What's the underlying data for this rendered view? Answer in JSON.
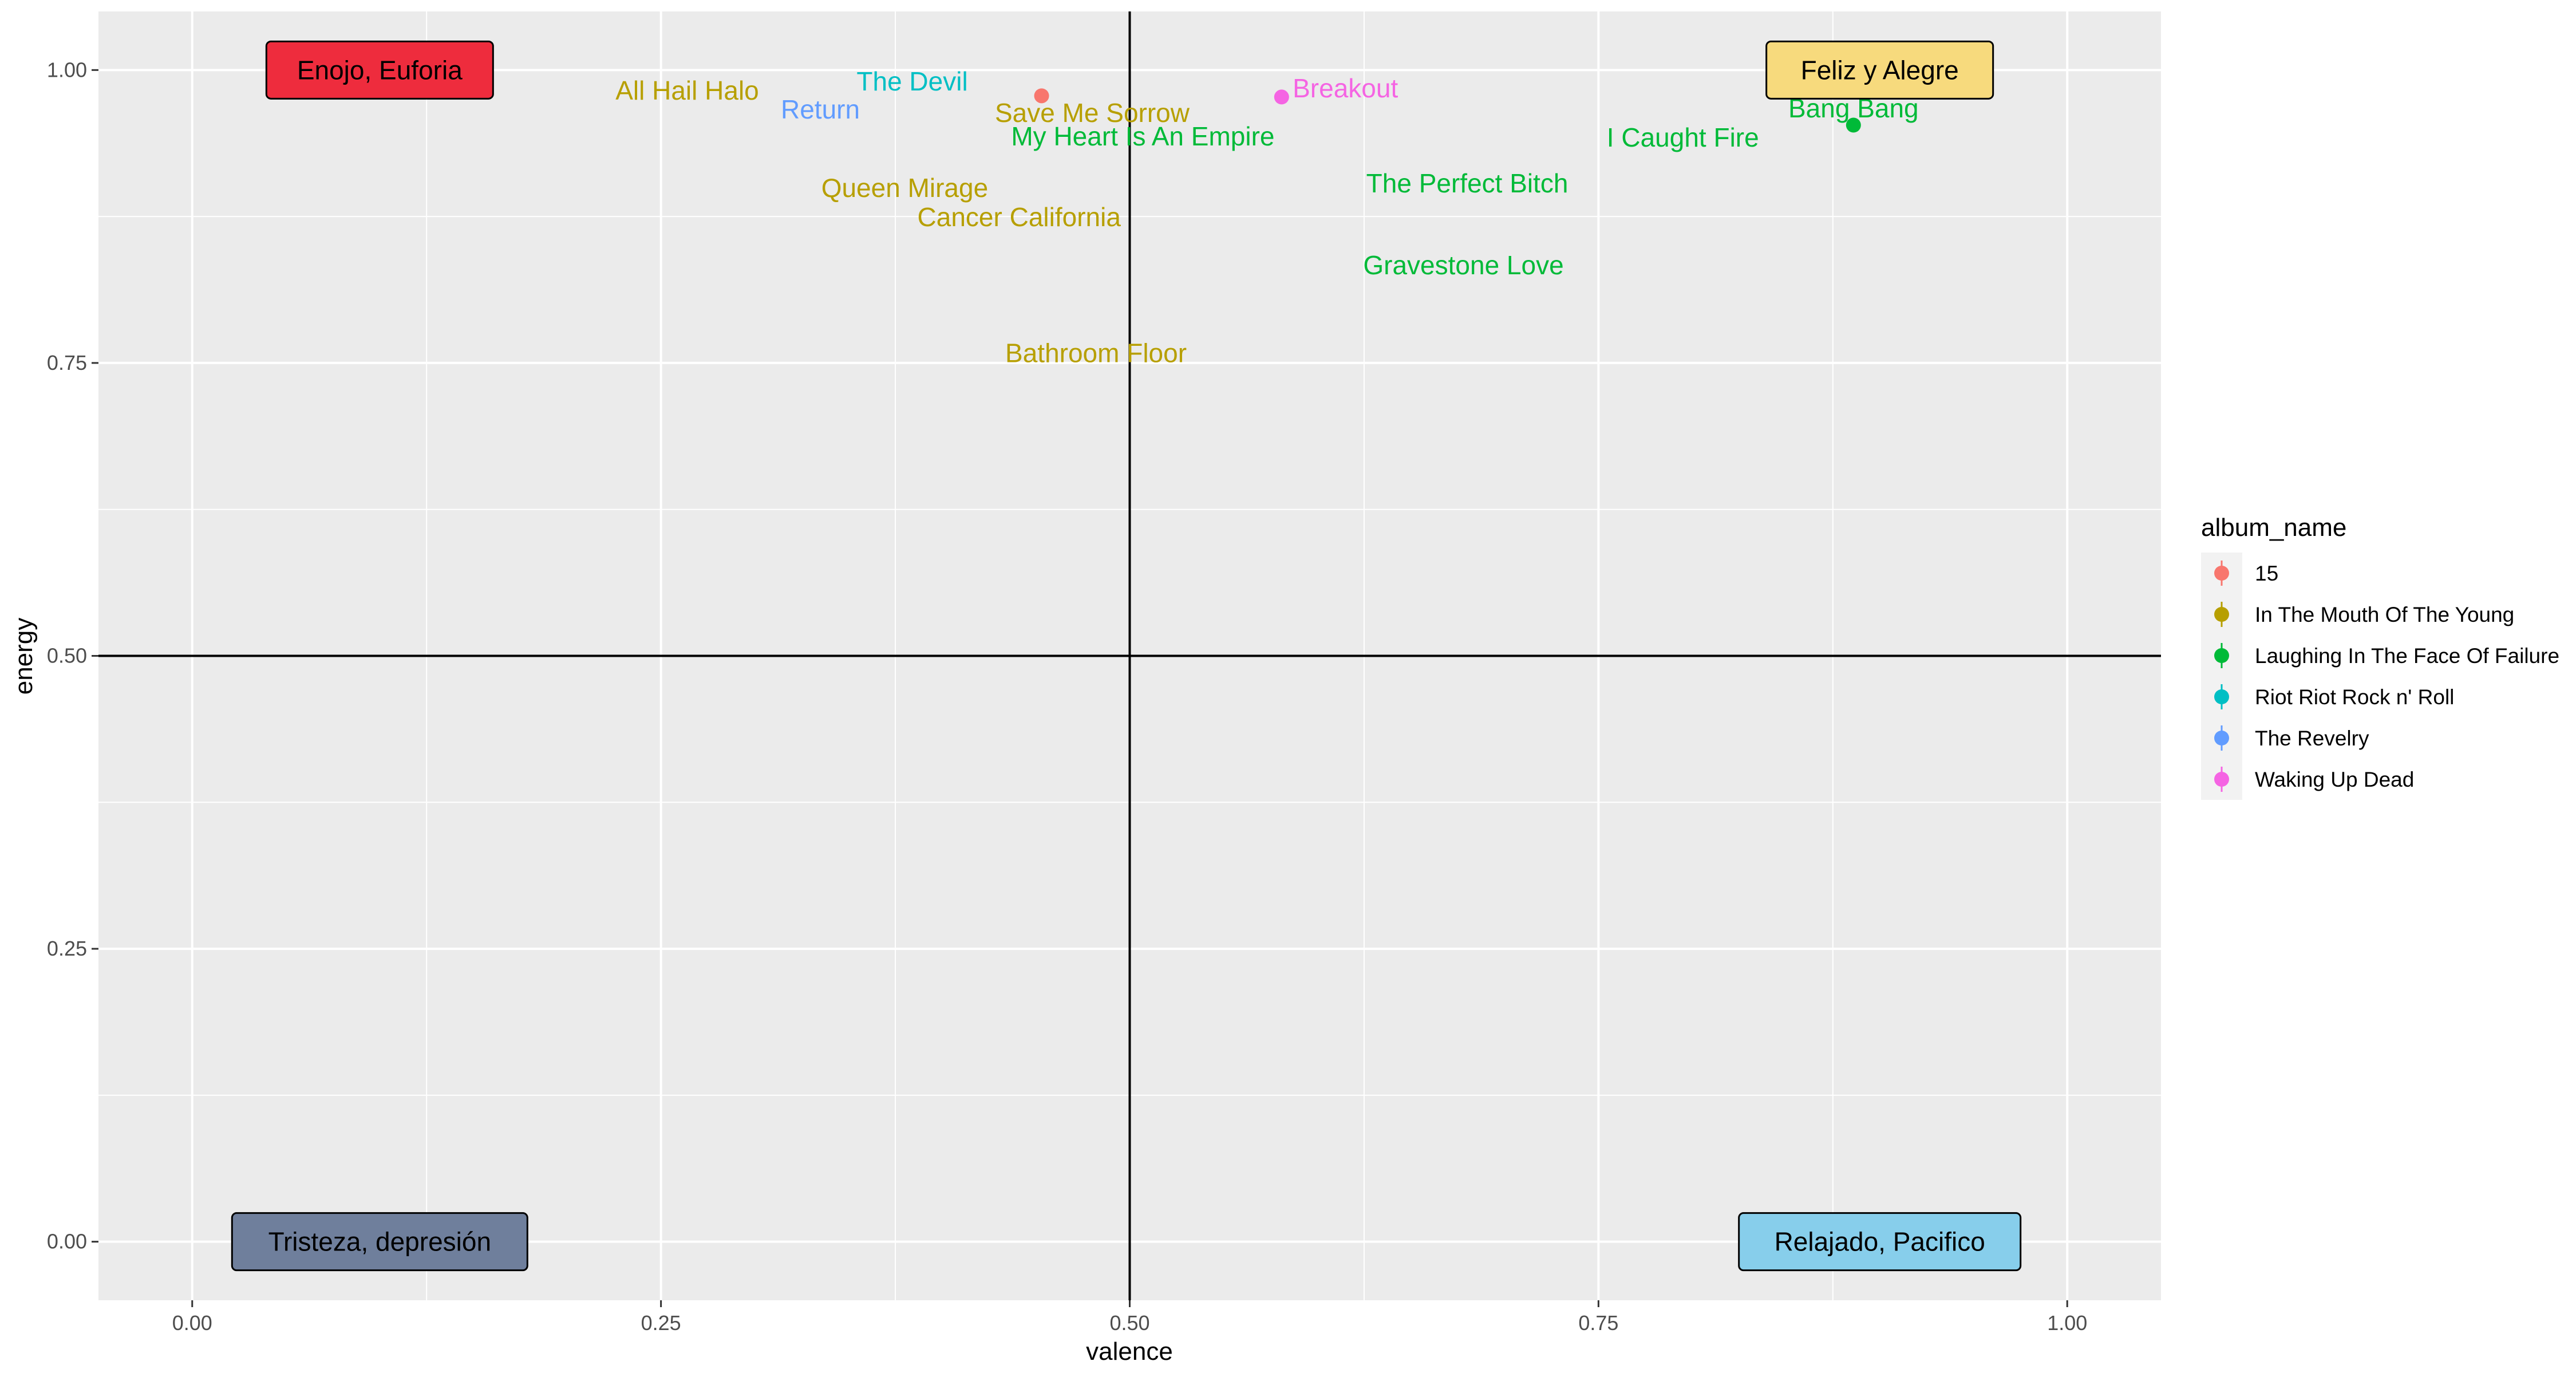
{
  "chart_data": {
    "type": "scatter",
    "title": "",
    "xlabel": "valence",
    "ylabel": "energy",
    "xlim": [
      -0.05,
      1.05
    ],
    "ylim": [
      -0.05,
      1.05
    ],
    "x_ticks": [
      0.0,
      0.25,
      0.5,
      0.75,
      1.0
    ],
    "x_tick_labels": [
      "0.00",
      "0.25",
      "0.50",
      "0.75",
      "1.00"
    ],
    "y_ticks": [
      0.0,
      0.25,
      0.5,
      0.75,
      1.0
    ],
    "y_tick_labels": [
      "0.00",
      "0.25",
      "0.50",
      "0.75",
      "1.00"
    ],
    "grid": true,
    "reference_lines": {
      "x": 0.5,
      "y": 0.5
    },
    "legend": {
      "title": "album_name",
      "placement": "right",
      "entries": [
        {
          "name": "15",
          "color": "#F8766D"
        },
        {
          "name": "In The Mouth Of The Young",
          "color": "#B79F00"
        },
        {
          "name": "Laughing In The Face Of Failure",
          "color": "#00BA38"
        },
        {
          "name": "Riot Riot Rock n' Roll",
          "color": "#00BFC4"
        },
        {
          "name": "The Revelry",
          "color": "#619CFF"
        },
        {
          "name": "Waking Up Dead",
          "color": "#F564E3"
        }
      ]
    },
    "points": [
      {
        "x": 0.453,
        "y": 0.978,
        "album": "15"
      },
      {
        "x": 0.581,
        "y": 0.977,
        "album": "Waking Up Dead"
      },
      {
        "x": 0.886,
        "y": 0.953,
        "album": "Laughing In The Face Of Failure"
      }
    ],
    "annotations": [
      {
        "text": "All Hail Halo",
        "x": 0.264,
        "y": 0.982,
        "album": "In The Mouth Of The Young"
      },
      {
        "text": "The Devil",
        "x": 0.384,
        "y": 0.99,
        "album": "Riot Riot Rock n' Roll"
      },
      {
        "text": "Return",
        "x": 0.335,
        "y": 0.966,
        "album": "The Revelry"
      },
      {
        "text": "Save Me Sorrow",
        "x": 0.48,
        "y": 0.963,
        "album": "In The Mouth Of The Young"
      },
      {
        "text": "My Heart Is An Empire",
        "x": 0.507,
        "y": 0.943,
        "album": "Laughing In The Face Of Failure"
      },
      {
        "text": "Breakout",
        "x": 0.615,
        "y": 0.984,
        "album": "Waking Up Dead"
      },
      {
        "text": "Bang Bang",
        "x": 0.886,
        "y": 0.967,
        "album": "Laughing In The Face Of Failure"
      },
      {
        "text": "I Caught Fire",
        "x": 0.795,
        "y": 0.942,
        "album": "Laughing In The Face Of Failure"
      },
      {
        "text": "The Perfect Bitch",
        "x": 0.68,
        "y": 0.903,
        "album": "Laughing In The Face Of Failure"
      },
      {
        "text": "Queen Mirage",
        "x": 0.38,
        "y": 0.899,
        "album": "In The Mouth Of The Young"
      },
      {
        "text": "Cancer California",
        "x": 0.441,
        "y": 0.874,
        "album": "In The Mouth Of The Young"
      },
      {
        "text": "Gravestone Love",
        "x": 0.678,
        "y": 0.833,
        "album": "Laughing In The Face Of Failure"
      },
      {
        "text": "Bathroom Floor",
        "x": 0.482,
        "y": 0.758,
        "album": "In The Mouth Of The Young"
      }
    ],
    "quadrant_labels": [
      {
        "text": "Enojo, Euforia",
        "x": 0.1,
        "y": 1.0,
        "fill": "#EE2C3D"
      },
      {
        "text": "Feliz y Alegre",
        "x": 0.9,
        "y": 1.0,
        "fill": "#F7DA7D"
      },
      {
        "text": "Tristeza, depresión",
        "x": 0.1,
        "y": 0.0,
        "fill": "#6F7F9C"
      },
      {
        "text": "Relajado, Pacifico",
        "x": 0.9,
        "y": 0.0,
        "fill": "#87CEEB"
      }
    ]
  }
}
